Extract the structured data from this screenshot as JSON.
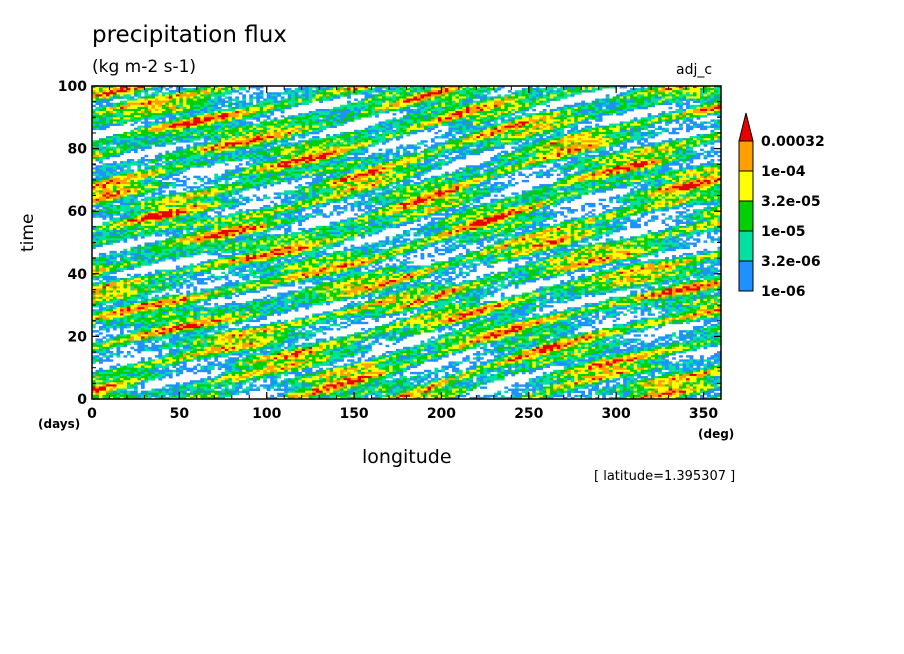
{
  "chart_data": {
    "type": "heatmap",
    "title": "precipitation flux",
    "units": "(kg m-2 s-1)",
    "experiment_tag": "adj_c",
    "xlabel": "longitude",
    "x_unit": "(deg)",
    "ylabel": "time",
    "y_unit": "(days)",
    "xlim": [
      0,
      360
    ],
    "ylim": [
      0,
      100
    ],
    "x_ticks": [
      "0",
      "50",
      "100",
      "150",
      "200",
      "250",
      "300",
      "350"
    ],
    "y_ticks": [
      "0",
      "20",
      "40",
      "60",
      "80",
      "100"
    ],
    "annotation": "[ latitude=1.395307 ]",
    "color_levels": [
      {
        "label": "1e-06",
        "color": "#1e90ff"
      },
      {
        "label": "3.2e-06",
        "color": "#00e0a0"
      },
      {
        "label": "1e-05",
        "color": "#00d000"
      },
      {
        "label": "3.2e-05",
        "color": "#ffff00"
      },
      {
        "label": "1e-04",
        "color": "#ffa000"
      },
      {
        "label": "0.00032",
        "color": "#e80000"
      }
    ],
    "grid": false,
    "legend_position": "right"
  }
}
